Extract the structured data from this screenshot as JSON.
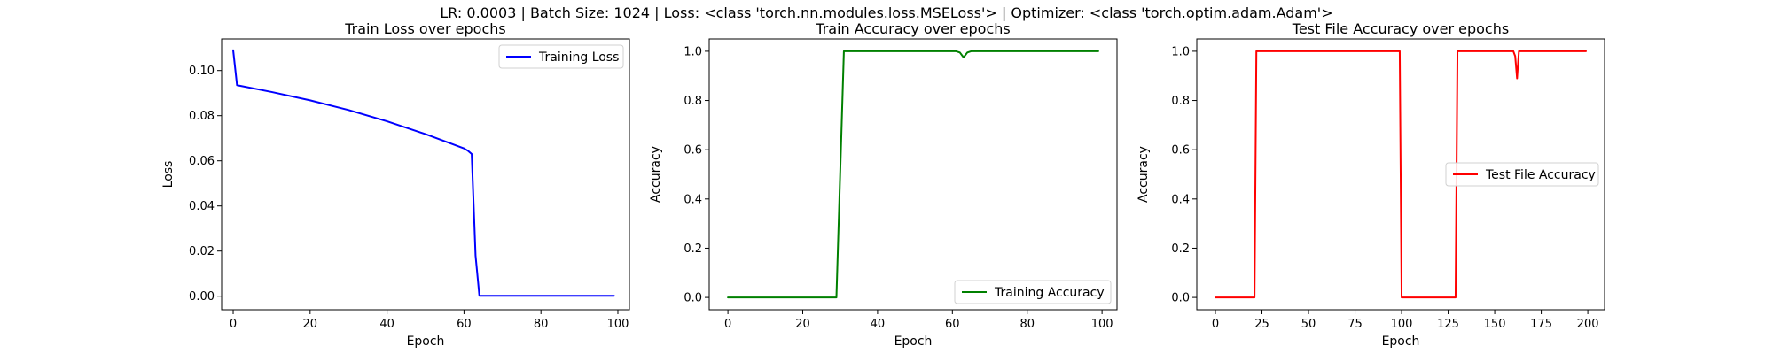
{
  "suptitle": "LR: 0.0003 | Batch Size: 1024 | Loss: <class 'torch.nn.modules.loss.MSELoss'> | Optimizer: <class 'torch.optim.adam.Adam'>",
  "chart_data": [
    {
      "type": "line",
      "title": "Train Loss over epochs",
      "xlabel": "Epoch",
      "ylabel": "Loss",
      "xlim": [
        -3,
        103
      ],
      "ylim": [
        -0.006,
        0.114
      ],
      "xticks": [
        0,
        20,
        40,
        60,
        80,
        100
      ],
      "yticks": [
        0.0,
        0.02,
        0.04,
        0.06,
        0.08,
        0.1
      ],
      "ytick_decimals": 2,
      "legend": "upper right",
      "series": [
        {
          "name": "Training Loss",
          "color": "#0000ff",
          "x": [
            0,
            1,
            10,
            20,
            30,
            40,
            50,
            60,
            61,
            62,
            63,
            64,
            99
          ],
          "y": [
            0.109,
            0.0935,
            0.0905,
            0.0868,
            0.0825,
            0.0775,
            0.0718,
            0.0655,
            0.0645,
            0.063,
            0.018,
            0.0002,
            0.0002
          ]
        }
      ],
      "grid": false
    },
    {
      "type": "line",
      "title": "Train Accuracy over epochs",
      "xlabel": "Epoch",
      "ylabel": "Accuracy",
      "xlim": [
        -5,
        104
      ],
      "ylim": [
        -0.05,
        1.05
      ],
      "xticks": [
        0,
        20,
        40,
        60,
        80,
        100
      ],
      "yticks": [
        0.0,
        0.2,
        0.4,
        0.6,
        0.8,
        1.0
      ],
      "ytick_decimals": 1,
      "legend": "lower right",
      "series": [
        {
          "name": "Training Accuracy",
          "color": "#008000",
          "x": [
            0,
            29,
            31,
            61,
            62,
            63,
            64,
            65,
            99
          ],
          "y": [
            0,
            0,
            1,
            1,
            0.995,
            0.975,
            0.995,
            1,
            1
          ]
        }
      ],
      "grid": false
    },
    {
      "type": "line",
      "title": "Test File Accuracy over epochs",
      "xlabel": "Epoch",
      "ylabel": "Accuracy",
      "xlim": [
        -10,
        209
      ],
      "ylim": [
        -0.05,
        1.05
      ],
      "xticks": [
        0,
        25,
        50,
        75,
        100,
        125,
        150,
        175,
        200
      ],
      "yticks": [
        0.0,
        0.2,
        0.4,
        0.6,
        0.8,
        1.0
      ],
      "ytick_decimals": 1,
      "legend": "center right",
      "series": [
        {
          "name": "Test File Accuracy",
          "color": "#ff0000",
          "x": [
            0,
            21,
            22,
            99,
            100,
            129,
            130,
            160,
            161,
            162,
            163,
            199
          ],
          "y": [
            0,
            0,
            1,
            1,
            0,
            0,
            1,
            1,
            0.98,
            0.89,
            1,
            1
          ]
        }
      ],
      "grid": false
    }
  ]
}
